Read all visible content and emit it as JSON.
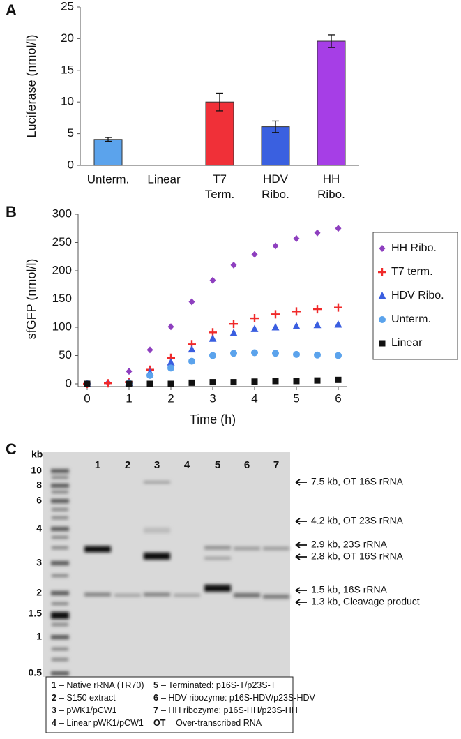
{
  "chart_data": [
    {
      "type": "bar",
      "panel": "A",
      "ylabel": "Luciferase (nmol/l)",
      "categories": [
        "Unterm.",
        "Linear",
        "T7 Term.",
        "HDV Ribo.",
        "HH Ribo."
      ],
      "values": [
        4.1,
        0,
        10.0,
        6.1,
        19.6
      ],
      "errors": [
        0.3,
        0,
        1.4,
        0.9,
        1.0
      ],
      "colors": [
        "#5ba3ec",
        "#5ba3ec",
        "#f03038",
        "#3a60e0",
        "#a63ee6"
      ],
      "ylim": [
        0,
        25
      ],
      "yticks": [
        0,
        5,
        10,
        15,
        20,
        25
      ]
    },
    {
      "type": "scatter",
      "panel": "B",
      "ylabel": "sfGFP (nmol/l)",
      "xlabel": "Time (h)",
      "x": [
        0,
        0.5,
        1,
        1.5,
        2,
        2.5,
        3,
        3.5,
        4,
        4.5,
        5,
        5.5,
        6
      ],
      "series": [
        {
          "name": "HH Ribo.",
          "color": "#8e3fbf",
          "marker": "diamond",
          "values": [
            1,
            2,
            22,
            60,
            101,
            145,
            183,
            210,
            229,
            244,
            257,
            267,
            275
          ]
        },
        {
          "name": "T7 term.",
          "color": "#f02a2a",
          "marker": "plus",
          "values": [
            0,
            1,
            3,
            25,
            46,
            70,
            91,
            106,
            116,
            123,
            128,
            132,
            135
          ]
        },
        {
          "name": "HDV Ribo.",
          "color": "#3a5ee0",
          "marker": "triangle",
          "values": [
            0,
            null,
            2,
            20,
            38,
            61,
            80,
            90,
            97,
            100,
            102,
            104,
            105
          ]
        },
        {
          "name": "Unterm.",
          "color": "#5ba3ec",
          "marker": "circle",
          "values": [
            0,
            null,
            1,
            15,
            28,
            40,
            50,
            54,
            55,
            54,
            52,
            51,
            50
          ]
        },
        {
          "name": "Linear",
          "color": "#111111",
          "marker": "square",
          "values": [
            0,
            null,
            0,
            0,
            0,
            2,
            3,
            3,
            4,
            5,
            5,
            6,
            7
          ]
        }
      ],
      "xlim": [
        0,
        6
      ],
      "xticks": [
        0,
        1,
        2,
        3,
        4,
        5,
        6
      ],
      "ylim": [
        0,
        300
      ],
      "yticks": [
        0,
        50,
        100,
        150,
        200,
        250,
        300
      ]
    }
  ],
  "gel": {
    "panel": "C",
    "unit": "kb",
    "size_labels": [
      "10",
      "8",
      "6",
      "4",
      "3",
      "2",
      "1.5",
      "1",
      "0.5"
    ],
    "lanes": [
      "1",
      "2",
      "3",
      "4",
      "5",
      "6",
      "7"
    ],
    "annotations": [
      "7.5 kb, OT 16S rRNA",
      "4.2 kb, OT 23S rRNA",
      "2.9 kb, 23S rRNA",
      "2.8 kb, OT 16S rRNA",
      "1.5 kb, 16S rRNA",
      "1.3 kb, Cleavage product"
    ],
    "legend": [
      {
        "key": "1",
        "text": "– Native rRNA (TR70)"
      },
      {
        "key": "2",
        "text": "– S150 extract"
      },
      {
        "key": "3",
        "text": "– pWK1/pCW1"
      },
      {
        "key": "4",
        "text": "– Linear pWK1/pCW1"
      },
      {
        "key": "5",
        "text": "– Terminated: p16S-T/p23S-T"
      },
      {
        "key": "6",
        "text": "– HDV ribozyme: p16S-HDV/p23S-HDV"
      },
      {
        "key": "7",
        "text": "– HH ribozyme: p16S-HH/p23S-HH"
      },
      {
        "key": "OT",
        "text": "= Over-transcribed RNA"
      }
    ]
  }
}
